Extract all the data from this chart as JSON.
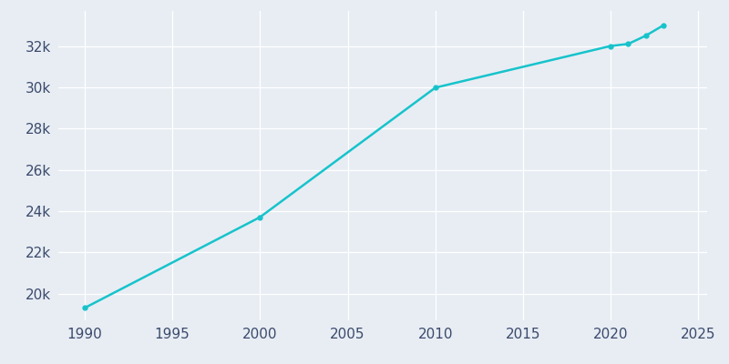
{
  "years": [
    1990,
    2000,
    2010,
    2020,
    2021,
    2022,
    2023
  ],
  "population": [
    19300,
    23700,
    29980,
    32000,
    32100,
    32500,
    33000
  ],
  "line_color": "#17c3cb",
  "marker": "o",
  "marker_size": 3.5,
  "line_width": 1.8,
  "bg_color": "#e8edf4",
  "plot_bg_color": "#e8edf4",
  "grid_color": "#ffffff",
  "xlim": [
    1988.5,
    2025.5
  ],
  "ylim": [
    18700,
    33700
  ],
  "xticks": [
    1990,
    1995,
    2000,
    2005,
    2010,
    2015,
    2020,
    2025
  ],
  "ytick_vals": [
    20000,
    22000,
    24000,
    26000,
    28000,
    30000,
    32000
  ],
  "ytick_labels": [
    "20k",
    "22k",
    "24k",
    "26k",
    "28k",
    "30k",
    "32k"
  ],
  "tick_color": "#3a4a6b",
  "tick_fontsize": 11,
  "figsize": [
    8.0,
    4.0
  ],
  "dpi": 100
}
